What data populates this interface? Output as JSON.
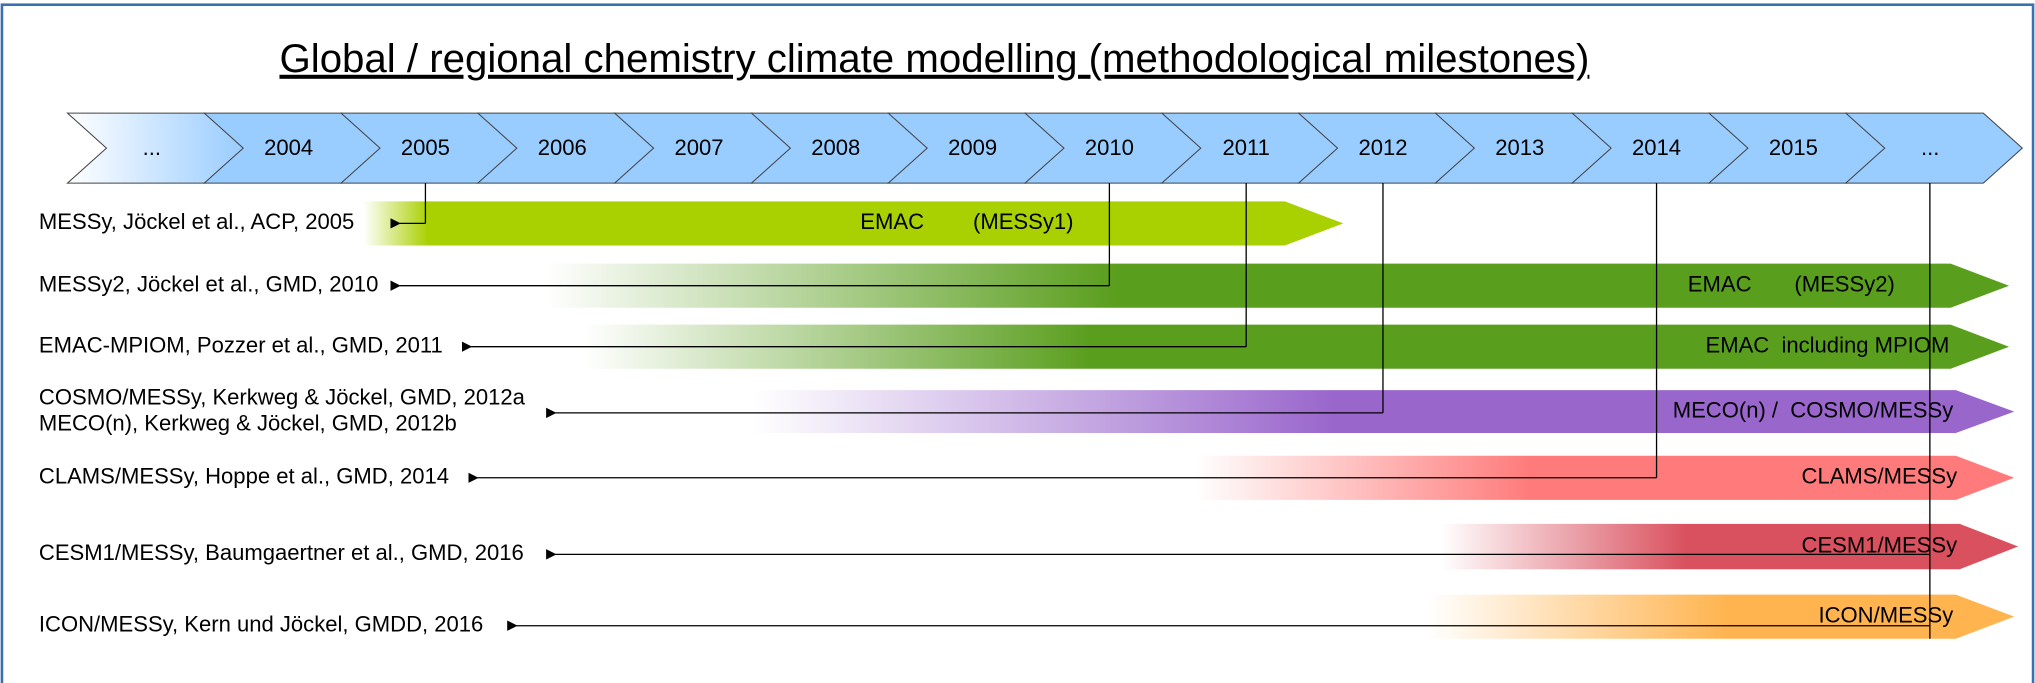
{
  "header": {
    "title": "Global / regional chemistry climate modelling (methodological milestones)"
  },
  "timeline": [
    "...",
    "2004",
    "2005",
    "2006",
    "2007",
    "2008",
    "2009",
    "2010",
    "2011",
    "2012",
    "2013",
    "2014",
    "2015",
    "..."
  ],
  "rows": [
    {
      "references": [
        "MESSy, Jöckel et al., ACP, 2005"
      ],
      "model": "EMAC        (MESSy1)"
    },
    {
      "references": [
        "MESSy2, Jöckel et al., GMD, 2010"
      ],
      "model": "EMAC       (MESSy2)"
    },
    {
      "references": [
        "EMAC-MPIOM, Pozzer et al., GMD, 2011"
      ],
      "model": "EMAC  including MPIOM"
    },
    {
      "references": [
        "COSMO/MESSy, Kerkweg & Jöckel, GMD, 2012a",
        "MECO(n), Kerkweg & Jöckel, GMD, 2012b"
      ],
      "model": "MECO(n) /  COSMO/MESSy"
    },
    {
      "references": [
        "CLAMS/MESSy, Hoppe et al., GMD, 2014"
      ],
      "model": "CLAMS/MESSy"
    },
    {
      "references": [
        "CESM1/MESSy, Baumgaertner et al., GMD, 2016"
      ],
      "model": "CESM1/MESSy"
    },
    {
      "references": [
        "ICON/MESSy, Kern und Jöckel, GMDD, 2016"
      ],
      "model": "ICON/MESSy"
    }
  ]
}
